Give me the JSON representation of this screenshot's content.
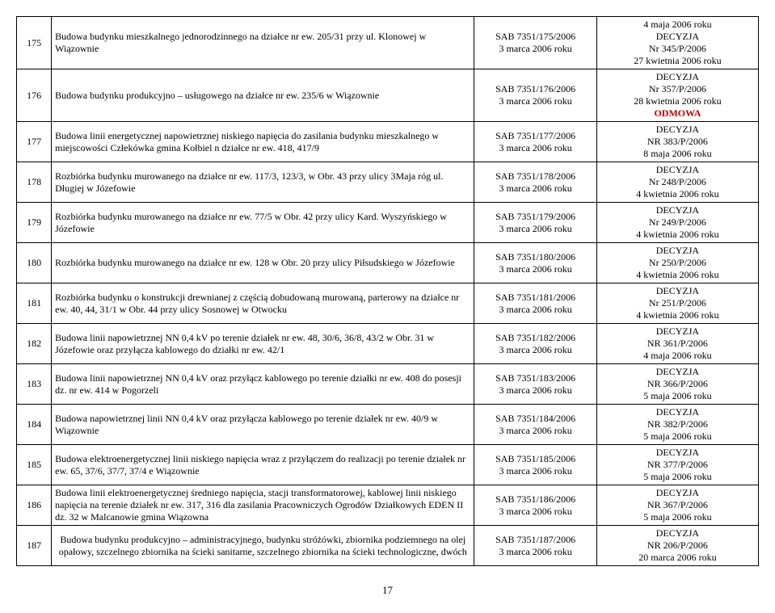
{
  "page_number": "17",
  "columns": {
    "num_width": "4.7%",
    "desc_width": "57%",
    "ref_width": "16.5%",
    "dec_width": "21.8%"
  },
  "style": {
    "font_family": "Times New Roman",
    "font_size_pt": 12,
    "border_color": "#000000",
    "background": "#ffffff",
    "odmowa_color": "#c00000"
  },
  "rows": [
    {
      "num": "175",
      "desc": "Budowa budynku mieszkalnego jednorodzinnego na działce nr ew. 205/31 przy ul. Klonowej w Wiązownie",
      "ref": "SAB 7351/175/2006\n3 marca  2006 roku",
      "dec": "4 maja 2006 roku\nDECYZJA\nNr 345/P/2006\n27 kwietnia 2006 roku"
    },
    {
      "num": "176",
      "desc": "Budowa budynku produkcyjno – usługowego na działce nr ew. 235/6 w Wiązownie",
      "ref": "SAB 7351/176/2006\n3 marca 2006 roku",
      "dec": "DECYZJA\nNr 357/P/2006\n28 kwietnia 2006 roku\n##ODMOWA##"
    },
    {
      "num": "177",
      "desc": "Budowa linii energetycznej napowietrznej niskiego napięcia do zasilania budynku mieszkalnego w miejscowości Człekówka gmina Kołbiel n działce nr ew. 418, 417/9",
      "ref": "SAB 7351/177/2006\n3 marca  2006 roku",
      "dec": "DECYZJA\nNR 383/P/2006\n8 maja 2006 roku"
    },
    {
      "num": "178",
      "desc": "Rozbiórka budynku murowanego na działce nr ew. 117/3, 123/3,   w Obr. 43  przy ulicy 3Maja róg ul. Długiej w Józefowie",
      "ref": "SAB 7351/178/2006\n3 marca  2006 roku",
      "dec": "DECYZJA\nNr 248/P/2006\n4 kwietnia 2006 roku"
    },
    {
      "num": "179",
      "desc": "Rozbiórka budynku murowanego na działce nr ew. 77/5  w Obr. 42  przy ulicy Kard. Wyszyńskiego w Józefowie",
      "ref": "SAB 7351/179/2006\n3 marca 2006 roku",
      "dec": "DECYZJA\nNr 249/P/2006\n4 kwietnia 2006 roku"
    },
    {
      "num": "180",
      "desc": "Rozbiórka budynku murowanego na działce nr ew. 128 w Obr. 20 przy ulicy Piłsudskiego w Józefowie",
      "ref": "SAB 7351/180/2006\n3 marca  2006 roku",
      "dec": "DECYZJA\nNr 250/P/2006\n4 kwietnia 2006 roku"
    },
    {
      "num": "181",
      "desc": "Rozbiórka budynku o konstrukcji drewnianej z częścią dobudowaną murowaną, parterowy na działce nr ew. 40, 44, 31/1 w Obr. 44 przy ulicy Sosnowej w Otwocku",
      "ref": "SAB 7351/181/2006\n3 marca  2006 roku",
      "dec": "DECYZJA\nNr 251/P/2006\n4 kwietnia 2006 roku"
    },
    {
      "num": "182",
      "desc": "Budowa linii napowietrznej NN 0,4 kV po terenie działek nr ew. 48, 30/6, 36/8, 43/2 w Obr. 31 w Józefowie oraz przyłącza kablowego do działki nr ew. 42/1",
      "ref": "SAB 7351/182/2006\n3 marca  2006 roku",
      "dec": "DECYZJA\nNR 361/P/2006\n4 maja 2006 roku"
    },
    {
      "num": "183",
      "desc": "Budowa linii napowietrznej NN 0,4 kV oraz przyłącz kablowego po terenie działki nr ew. 408 do posesji dz. nr ew. 414 w Pogorzeli",
      "ref": "SAB 7351/183/2006\n3 marca  2006 roku",
      "dec": "DECYZJA\nNR 366/P/2006\n5 maja 2006 roku"
    },
    {
      "num": "184",
      "desc": "Budowa napowietrznej linii NN 0,4 kV oraz przyłącza kablowego po terenie działek nr ew. 40/9 w Wiązownie",
      "ref": "SAB 7351/184/2006\n3 marca  2006 roku",
      "dec": "DECYZJA\nNR 382/P/2006\n5 maja 2006 roku"
    },
    {
      "num": "185",
      "desc": "Budowa elektroenergetycznej linii niskiego napięcia wraz z przyłączem do realizacji po terenie działek nr ew. 65, 37/6, 37/7, 37/4 e Wiązownie",
      "ref": "SAB 7351/185/2006\n3 marca  2006 roku",
      "dec": "DECYZJA\nNR 377/P/2006\n5 maja 2006 roku"
    },
    {
      "num": "186",
      "desc": "Budowa linii elektroenergetycznej średniego napięcia, stacji transformatorowej, kablowej linii niskiego napięcia na terenie działek nr ew. 317, 316 dla zasilania Pracowniczych Ogrodów Działkowych EDEN II dz. 32 w Malcanowie gmina Wiązowna",
      "ref": "SAB 7351/186/2006\n3 marca  2006 roku",
      "dec": "DECYZJA\nNR 367/P/2006\n5 maja 2006 roku"
    },
    {
      "num": "187",
      "desc": "Budowa budynku produkcyjno – administracyjnego, budynku stróżówki, zbiornika podziemnego na olej opałowy, szczelnego zbiornika na ścieki sanitarne, szczelnego zbiornika na ścieki technologiczne, dwóch",
      "desc_align": "center",
      "ref": "SAB 7351/187/2006\n3 marca  2006 roku",
      "dec": "DECYZJA\nNR 206/P/2006\n20 marca 2006 roku"
    }
  ]
}
